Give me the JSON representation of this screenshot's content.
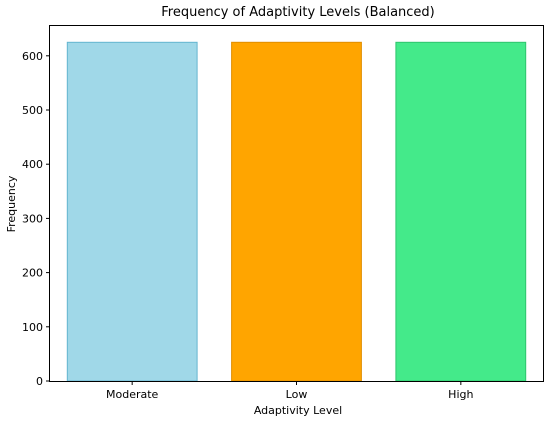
{
  "chart_data": {
    "type": "bar",
    "title": "Frequency of Adaptivity Levels (Balanced)",
    "xlabel": "Adaptivity Level",
    "ylabel": "Frequency",
    "categories": [
      "Moderate",
      "Low",
      "High"
    ],
    "values": [
      625,
      625,
      625
    ],
    "bar_colors": [
      "#a0d8e8",
      "#ffa500",
      "#44ea8a"
    ],
    "edge_colors": [
      "#63b5cf",
      "#e08e00",
      "#2ec56c"
    ],
    "ylim": [
      0,
      655
    ],
    "yticks": [
      0,
      100,
      200,
      300,
      400,
      500,
      600
    ],
    "grid": false,
    "legend": "none"
  }
}
